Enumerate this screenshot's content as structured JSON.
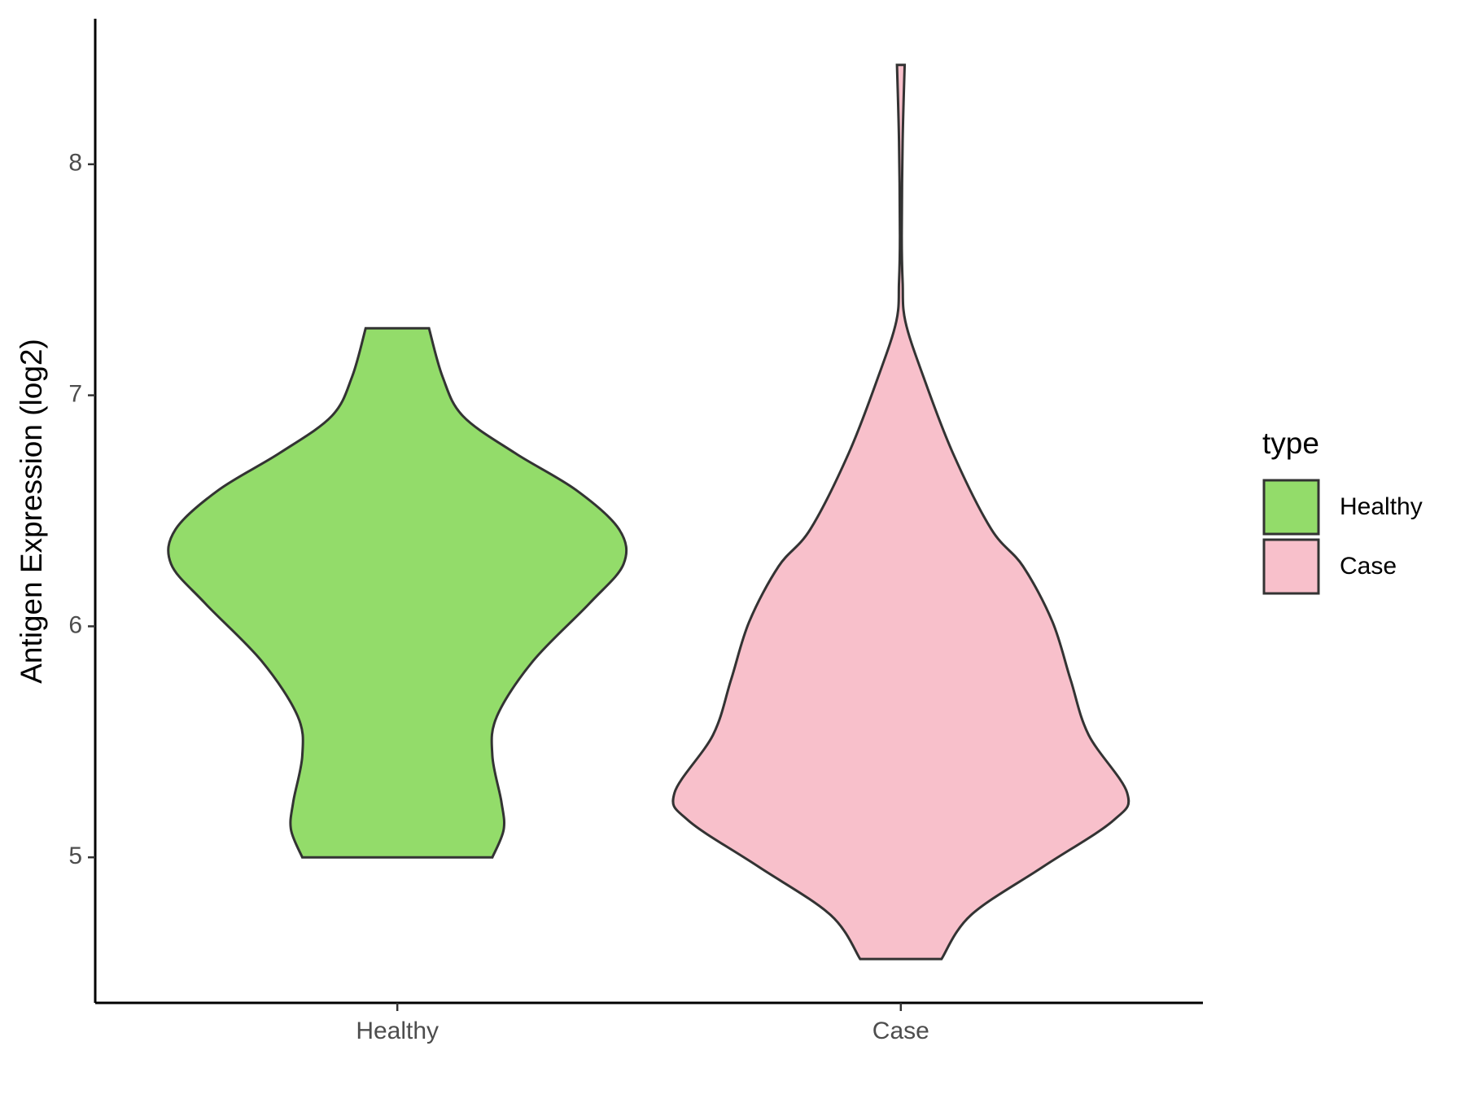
{
  "chart_data": {
    "type": "violin",
    "y_label": "Antigen Expression (log2)",
    "categories": [
      "Healthy",
      "Case"
    ],
    "legend_title": "type",
    "legend_position": "right",
    "ylim": [
      4.37,
      8.63
    ],
    "yticks": [
      5,
      6,
      7,
      8
    ],
    "series": [
      {
        "name": "Healthy",
        "color": "#93DC6A",
        "y": [
          7.29,
          7.08,
          6.91,
          6.75,
          6.59,
          6.42,
          6.27,
          6.1,
          5.85,
          5.61,
          5.44,
          5.24,
          5.12,
          5.0
        ],
        "density": [
          0.14,
          0.2,
          0.29,
          0.52,
          0.79,
          0.98,
          1.0,
          0.85,
          0.6,
          0.44,
          0.42,
          0.46,
          0.47,
          0.42
        ]
      },
      {
        "name": "Case",
        "color": "#F8C0CB",
        "y": [
          8.43,
          8.1,
          7.69,
          7.49,
          7.32,
          7.08,
          6.75,
          6.42,
          6.26,
          6.02,
          5.77,
          5.53,
          5.28,
          5.16,
          4.96,
          4.75,
          4.56
        ],
        "density": [
          0.017,
          0.008,
          0.004,
          0.008,
          0.02,
          0.1,
          0.23,
          0.4,
          0.54,
          0.67,
          0.75,
          0.83,
          1.0,
          0.94,
          0.63,
          0.31,
          0.18
        ]
      }
    ]
  }
}
